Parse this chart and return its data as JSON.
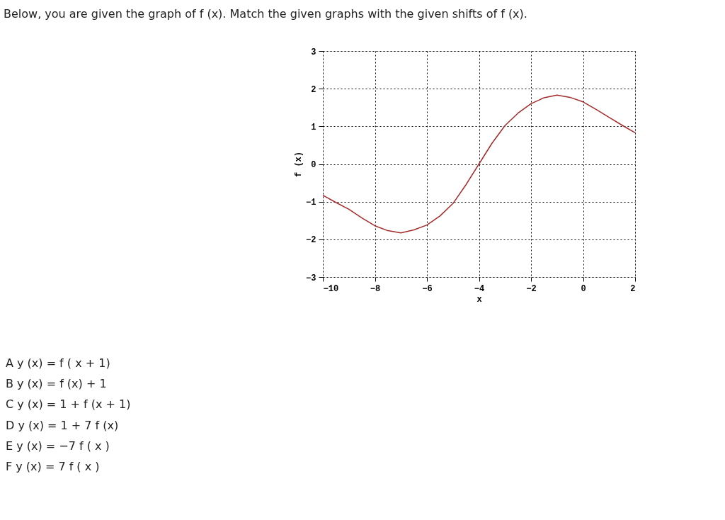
{
  "chart_data": {
    "type": "line",
    "title": "Below, you are given the graph of f (x). Match the given graphs with the given shifts of f (x).",
    "xlabel": "x",
    "ylabel": "f (x)",
    "x": [
      -10,
      -9.5,
      -9,
      -8.5,
      -8,
      -7.5,
      -7,
      -6.5,
      -6,
      -5.5,
      -5,
      -4.5,
      -4,
      -3.5,
      -3,
      -2.5,
      -2,
      -1.5,
      -1,
      -0.5,
      0,
      0.5,
      1,
      1.5,
      2
    ],
    "series": [
      {
        "color": "#a52a2a",
        "values": [
          -0.83,
          -1.02,
          -1.2,
          -1.43,
          -1.64,
          -1.77,
          -1.83,
          -1.75,
          -1.62,
          -1.38,
          -1.05,
          -0.55,
          0,
          0.55,
          1.02,
          1.35,
          1.6,
          1.76,
          1.83,
          1.77,
          1.65,
          1.45,
          1.24,
          1.03,
          0.83
        ]
      }
    ],
    "xlim": [
      -10,
      2
    ],
    "xticks": [
      -10,
      -8,
      -6,
      -4,
      -2,
      0,
      2
    ],
    "ylim": [
      -3,
      3
    ],
    "yticks": [
      -3,
      -2,
      -1,
      0,
      1,
      2,
      3
    ],
    "grid": true,
    "marker": "none",
    "line_style": "solid",
    "annotations": [
      "A y (x) = f ( x + 1)",
      "B y (x) = f (x) +  1",
      "C y (x) = 1  + f (x + 1)",
      "D y (x) = 1 + 7  f (x)",
      "E y (x) = −7  f ( x )",
      "F y (x) = 7  f ( x )"
    ]
  }
}
